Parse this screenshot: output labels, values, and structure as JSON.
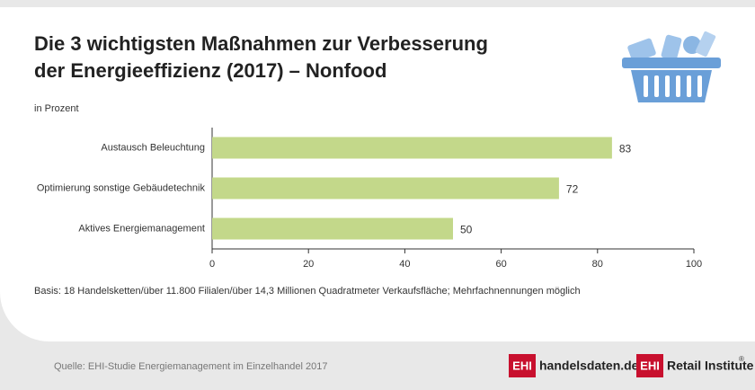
{
  "chart_data": {
    "type": "bar",
    "orientation": "horizontal",
    "title": [
      "Die 3 wichtigsten Maßnahmen zur Verbesserung",
      "der Energieeffizienz (2017) – Nonfood"
    ],
    "subtitle": "in Prozent",
    "categories": [
      "Austausch Beleuchtung",
      "Optimierung sonstige Gebäudetechnik",
      "Aktives Energiemanagement"
    ],
    "values": [
      83,
      72,
      50
    ],
    "color": "#c3d88a",
    "xlim": [
      0,
      100
    ],
    "xticks": [
      0,
      20,
      40,
      60,
      80,
      100
    ],
    "note": "Basis: 18 Handelsketten/über 11.800 Filialen/über 14,3 Millionen Quadratmeter Verkaufsfläche; Mehrfachnennungen möglich",
    "source": "Quelle: EHI-Studie Energiemanagement im Einzelhandel 2017",
    "logos": [
      {
        "badge": "EHI",
        "text": "handelsdaten.de"
      },
      {
        "badge": "EHI",
        "text": "Retail Institute",
        "mark": "®"
      }
    ]
  }
}
